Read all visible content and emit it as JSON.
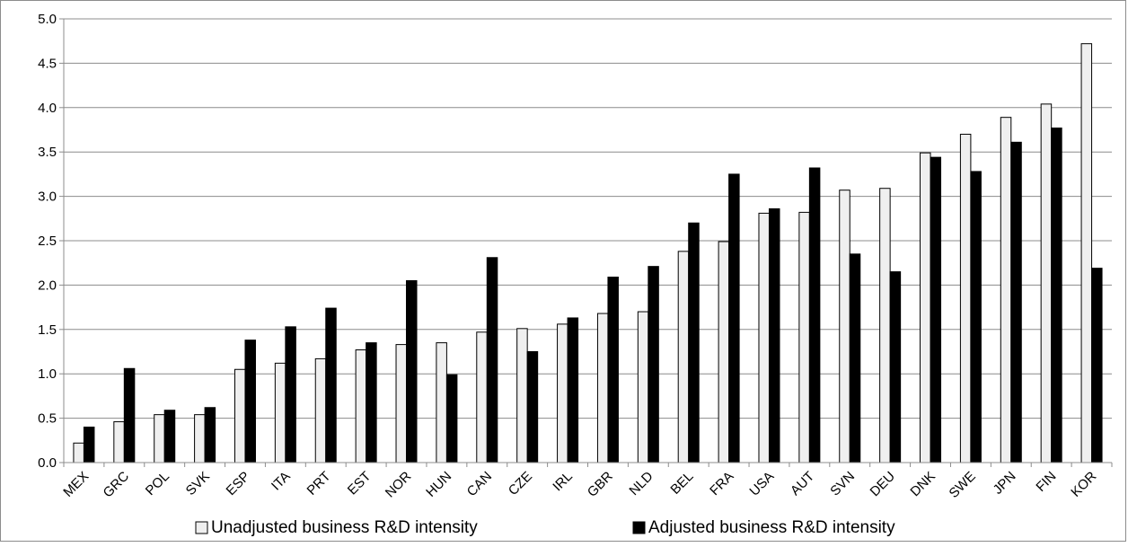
{
  "chart_data": {
    "type": "bar",
    "title": "",
    "xlabel": "",
    "ylabel": "",
    "ylim": [
      0,
      5
    ],
    "yticks": [
      "0.0",
      "0.5",
      "1.0",
      "1.5",
      "2.0",
      "2.5",
      "3.0",
      "3.5",
      "4.0",
      "4.5",
      "5.0"
    ],
    "grid": true,
    "legend_position": "bottom",
    "categories": [
      "MEX",
      "GRC",
      "POL",
      "SVK",
      "ESP",
      "ITA",
      "PRT",
      "EST",
      "NOR",
      "HUN",
      "CAN",
      "CZE",
      "IRL",
      "GBR",
      "NLD",
      "BEL",
      "FRA",
      "USA",
      "AUT",
      "SVN",
      "DEU",
      "DNK",
      "SWE",
      "JPN",
      "FIN",
      "KOR"
    ],
    "series": [
      {
        "name": "Unadjusted business R&D intensity",
        "color": "#efefef",
        "values": [
          0.22,
          0.46,
          0.54,
          0.54,
          1.05,
          1.12,
          1.17,
          1.27,
          1.33,
          1.35,
          1.47,
          1.51,
          1.56,
          1.68,
          1.7,
          2.38,
          2.49,
          2.81,
          2.82,
          3.07,
          3.09,
          3.49,
          3.7,
          3.89,
          4.04,
          4.72
        ]
      },
      {
        "name": "Adjusted business R&D intensity",
        "color": "#000000",
        "values": [
          0.4,
          1.06,
          0.59,
          0.62,
          1.38,
          1.53,
          1.74,
          1.35,
          2.05,
          0.99,
          2.31,
          1.25,
          1.63,
          2.09,
          2.21,
          2.7,
          3.25,
          2.86,
          3.32,
          2.35,
          2.15,
          3.44,
          3.28,
          3.61,
          3.77,
          2.19
        ]
      }
    ]
  }
}
